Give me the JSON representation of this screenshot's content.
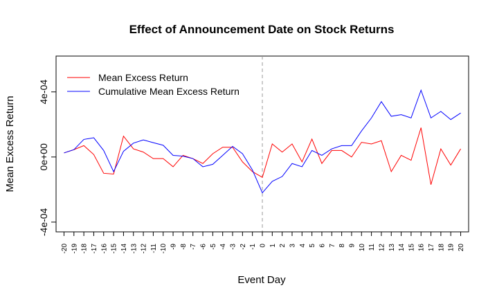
{
  "chart_data": {
    "type": "line",
    "title": "Effect of Announcement Date on Stock Returns",
    "xlabel": "Event Day",
    "ylabel": "Mean Excess Return",
    "x": [
      -20,
      -19,
      -18,
      -17,
      -16,
      -15,
      -14,
      -13,
      -12,
      -11,
      -10,
      -9,
      -8,
      -7,
      -6,
      -5,
      -4,
      -3,
      -2,
      -1,
      0,
      1,
      2,
      3,
      4,
      5,
      6,
      7,
      8,
      9,
      10,
      11,
      12,
      13,
      14,
      15,
      16,
      17,
      18,
      19,
      20
    ],
    "x_tick_labels": [
      "-20",
      "-19",
      "-18",
      "-17",
      "-16",
      "-15",
      "-14",
      "-13",
      "-12",
      "-11",
      "-10",
      "-9",
      "-8",
      "-7",
      "-6",
      "-5",
      "-4",
      "-3",
      "-2",
      "-1",
      "0",
      "1",
      "2",
      "3",
      "4",
      "5",
      "6",
      "7",
      "8",
      "9",
      "10",
      "11",
      "12",
      "13",
      "14",
      "15",
      "16",
      "17",
      "18",
      "19",
      "20"
    ],
    "y_ticks": [
      -0.0004,
      0,
      0.0004
    ],
    "y_tick_labels": [
      "-4e-04",
      "0e+00",
      "4e-04"
    ],
    "ylim": [
      -0.00046,
      0.00062
    ],
    "xlim": [
      -20.8,
      20.8
    ],
    "event_line_x": 0,
    "legend_position": "top-left",
    "grid": false,
    "series": [
      {
        "name": "Mean Excess Return",
        "color": "#ff0000",
        "values": [
          2.5e-05,
          4.5e-05,
          7e-05,
          1.5e-05,
          -0.0001,
          -0.000105,
          0.000128,
          5e-05,
          3e-05,
          -1e-05,
          -1e-05,
          -6e-05,
          1e-05,
          -1e-05,
          -4e-05,
          2e-05,
          6e-05,
          6e-05,
          -3e-05,
          -9e-05,
          -0.000125,
          8e-05,
          3e-05,
          8e-05,
          -3e-05,
          0.00011,
          -4e-05,
          4e-05,
          4e-05,
          0.0,
          9e-05,
          8e-05,
          0.0001,
          -9e-05,
          1e-05,
          -2e-05,
          0.00018,
          -0.00017,
          5e-05,
          -5e-05,
          5e-05
        ]
      },
      {
        "name": "Cumulative Mean Excess Return",
        "color": "#0000ff",
        "values": [
          2.5e-05,
          4.5e-05,
          0.000108,
          0.000118,
          4e-05,
          -9e-05,
          3.5e-05,
          8.5e-05,
          0.000105,
          8.8e-05,
          7.2e-05,
          1e-05,
          5e-06,
          -1e-05,
          -6e-05,
          -4.5e-05,
          1e-05,
          6.5e-05,
          2e-05,
          -8e-05,
          -0.00022,
          -0.00015,
          -0.00012,
          -4e-05,
          -6e-05,
          4e-05,
          1e-05,
          5e-05,
          7e-05,
          7e-05,
          0.00016,
          0.00024,
          0.00034,
          0.00025,
          0.00026,
          0.00024,
          0.00041,
          0.00024,
          0.00028,
          0.00023,
          0.00027
        ]
      }
    ]
  }
}
